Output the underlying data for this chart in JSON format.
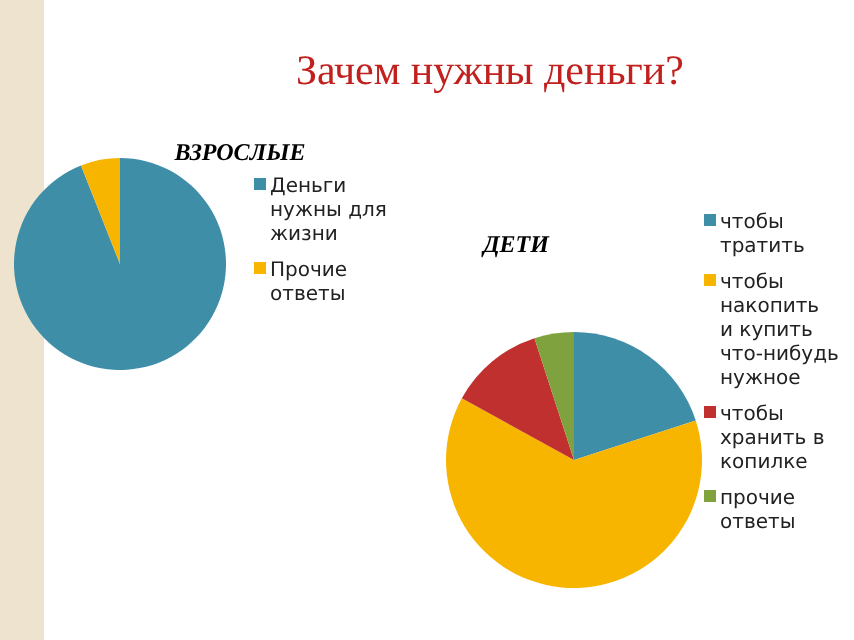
{
  "chart_data": [
    {
      "type": "pie",
      "title": "ВЗРОСЛЫЕ",
      "categories": [
        "Деньги нужны для жизни",
        "Прочие ответы"
      ],
      "values": [
        94,
        6
      ],
      "colors": [
        "#3e8ea8",
        "#f7b500"
      ],
      "legend": "right",
      "annotations": [
        "Зачем нужны деньги?"
      ]
    },
    {
      "type": "pie",
      "title": "ДЕТИ",
      "categories": [
        "чтобы тратить",
        "чтобы накопить и купить что-нибудь нужное",
        "чтобы хранить в копилке",
        "прочие ответы"
      ],
      "values": [
        20,
        63,
        12,
        5
      ],
      "colors": [
        "#3e8ea8",
        "#f7b500",
        "#c0302e",
        "#7fa23e"
      ],
      "legend": "right"
    }
  ]
}
